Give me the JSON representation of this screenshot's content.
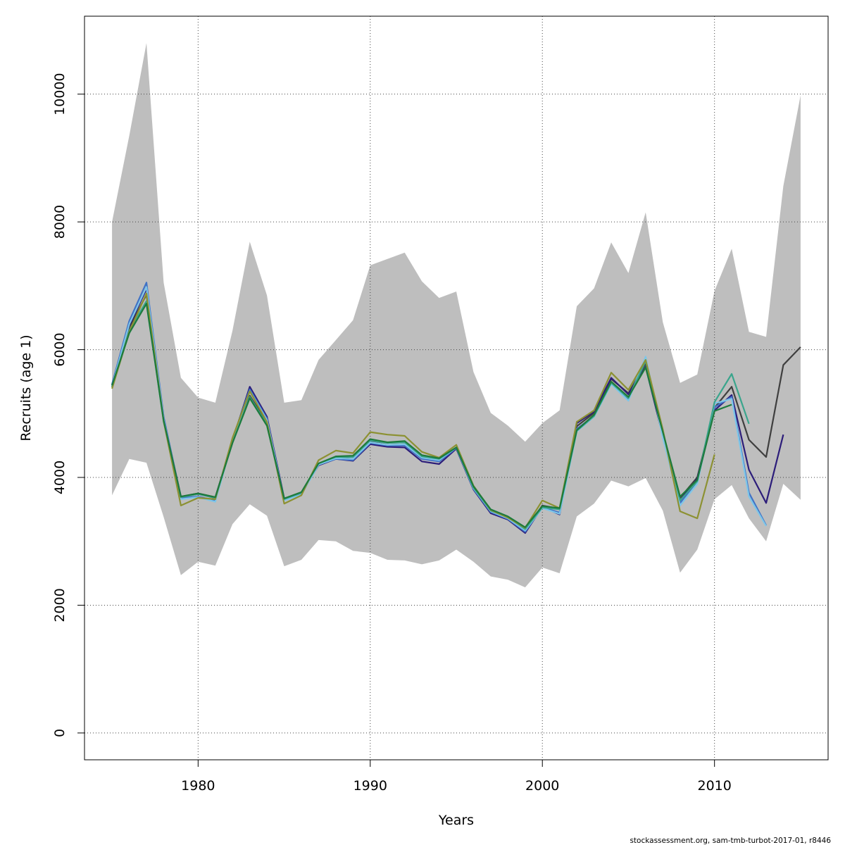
{
  "chart_data": {
    "type": "line",
    "title": "",
    "xlabel": "Years",
    "ylabel": "Recruits (age 1)",
    "xlim": [
      1973.4,
      2016.6
    ],
    "ylim": [
      -420,
      11220
    ],
    "x_ticks": [
      1980,
      1990,
      2000,
      2010
    ],
    "y_ticks": [
      0,
      2000,
      4000,
      6000,
      8000,
      10000
    ],
    "grid": true,
    "confidence_band": {
      "name": "confidence interval",
      "color": "#bebebe",
      "years": [
        1975,
        1976,
        1977,
        1978,
        1979,
        1980,
        1981,
        1982,
        1983,
        1984,
        1985,
        1986,
        1987,
        1988,
        1989,
        1990,
        1991,
        1992,
        1993,
        1994,
        1995,
        1996,
        1997,
        1998,
        1999,
        2000,
        2001,
        2002,
        2003,
        2004,
        2005,
        2006,
        2007,
        2008,
        2009,
        2010,
        2011,
        2012,
        2013,
        2014,
        2015
      ],
      "upper": [
        8000,
        9350,
        10800,
        7050,
        5560,
        5250,
        5170,
        6300,
        7690,
        6850,
        5170,
        5210,
        5840,
        6150,
        6460,
        7320,
        7420,
        7520,
        7070,
        6810,
        6910,
        5650,
        5010,
        4810,
        4560,
        4850,
        5050,
        6680,
        6960,
        7680,
        7200,
        8150,
        6430,
        5480,
        5610,
        6920,
        7580,
        6280,
        6200,
        8560,
        9980
      ],
      "lower": [
        3720,
        4290,
        4230,
        3380,
        2470,
        2680,
        2620,
        3270,
        3580,
        3400,
        2610,
        2710,
        3020,
        3000,
        2850,
        2820,
        2710,
        2700,
        2640,
        2700,
        2870,
        2680,
        2450,
        2400,
        2280,
        2590,
        2500,
        3390,
        3590,
        3950,
        3860,
        3990,
        3480,
        2510,
        2870,
        3660,
        3880,
        3360,
        3000,
        3900,
        3650
      ]
    },
    "series": [
      {
        "color": "#3f3f3f",
        "years": [
          1975,
          1976,
          1977,
          1978,
          1979,
          1980,
          1981,
          1982,
          1983,
          1984,
          1985,
          1986,
          1987,
          1988,
          1989,
          1990,
          1991,
          1992,
          1993,
          1994,
          1995,
          1996,
          1997,
          1998,
          1999,
          2000,
          2001,
          2002,
          2003,
          2004,
          2005,
          2006,
          2007,
          2008,
          2009,
          2010,
          2011,
          2012,
          2013,
          2014,
          2015
        ],
        "values": [
          5420,
          6350,
          6860,
          4900,
          3700,
          3750,
          3690,
          4560,
          5280,
          4860,
          3660,
          3760,
          4210,
          4310,
          4290,
          4560,
          4510,
          4520,
          4300,
          4260,
          4460,
          3830,
          3470,
          3370,
          3180,
          3560,
          3510,
          4800,
          5010,
          5540,
          5320,
          5780,
          4700,
          3680,
          4000,
          5090,
          5420,
          4590,
          4320,
          5760,
          6040
        ]
      },
      {
        "color": "#2c1d7a",
        "years": [
          1975,
          1976,
          1977,
          1978,
          1979,
          1980,
          1981,
          1982,
          1983,
          1984,
          1985,
          1986,
          1987,
          1988,
          1989,
          1990,
          1991,
          1992,
          1993,
          1994,
          1995,
          1996,
          1997,
          1998,
          1999,
          2000,
          2001,
          2002,
          2003,
          2004,
          2005,
          2006,
          2007,
          2008,
          2009,
          2010,
          2011,
          2012,
          2013,
          2014
        ],
        "values": [
          5450,
          6380,
          6950,
          4920,
          3700,
          3740,
          3680,
          4580,
          5420,
          4950,
          3670,
          3760,
          4190,
          4290,
          4260,
          4520,
          4480,
          4470,
          4250,
          4210,
          4450,
          3810,
          3440,
          3340,
          3130,
          3540,
          3420,
          4850,
          5030,
          5560,
          5300,
          5730,
          4650,
          3640,
          3980,
          5050,
          5290,
          4120,
          3600,
          4670
        ]
      },
      {
        "color": "#3f72c6",
        "years": [
          1975,
          1976,
          1977,
          1978,
          1979,
          1980,
          1981,
          1982,
          1983,
          1984,
          1985,
          1986,
          1987,
          1988,
          1989,
          1990,
          1991,
          1992,
          1993,
          1994,
          1995,
          1996,
          1997,
          1998,
          1999,
          2000,
          2001,
          2002,
          2003,
          2004,
          2005,
          2006,
          2007,
          2008,
          2009,
          2010,
          2011,
          2012,
          2013
        ],
        "values": [
          5460,
          6450,
          7050,
          4950,
          3680,
          3700,
          3640,
          4600,
          5380,
          4920,
          3650,
          3740,
          4200,
          4290,
          4270,
          4540,
          4500,
          4500,
          4290,
          4250,
          4460,
          3820,
          3460,
          3350,
          3150,
          3530,
          3450,
          4760,
          4960,
          5490,
          5230,
          5870,
          4640,
          3600,
          3940,
          5100,
          5260,
          3760,
          3250
        ]
      },
      {
        "color": "#7ec6e8",
        "years": [
          1975,
          1976,
          1977,
          1978,
          1979,
          1980,
          1981,
          1982,
          1983,
          1984,
          1985,
          1986,
          1987,
          1988,
          1989,
          1990,
          1991,
          1992,
          1993,
          1994,
          1995,
          1996,
          1997,
          1998,
          1999,
          2000,
          2001,
          2002,
          2003,
          2004,
          2005,
          2006,
          2007,
          2008,
          2009,
          2010,
          2011,
          2012,
          2013
        ],
        "values": [
          5430,
          6400,
          6980,
          4910,
          3660,
          3690,
          3620,
          4580,
          5350,
          4900,
          3640,
          3730,
          4200,
          4300,
          4290,
          4550,
          4510,
          4520,
          4310,
          4270,
          4470,
          3830,
          3470,
          3360,
          3170,
          3520,
          3430,
          4720,
          4950,
          5460,
          5200,
          5890,
          4620,
          3560,
          3900,
          5160,
          5230,
          3700,
          3240
        ]
      },
      {
        "color": "#3aa58c",
        "years": [
          1975,
          1976,
          1977,
          1978,
          1979,
          1980,
          1981,
          1982,
          1983,
          1984,
          1985,
          1986,
          1987,
          1988,
          1989,
          1990,
          1991,
          1992,
          1993,
          1994,
          1995,
          1996,
          1997,
          1998,
          1999,
          2000,
          2001,
          2002,
          2003,
          2004,
          2005,
          2006,
          2007,
          2008,
          2009,
          2010,
          2011,
          2012
        ],
        "values": [
          5410,
          6300,
          6760,
          4870,
          3690,
          3740,
          3680,
          4550,
          5260,
          4830,
          3660,
          3760,
          4220,
          4320,
          4320,
          4580,
          4540,
          4550,
          4330,
          4290,
          4470,
          3840,
          3480,
          3380,
          3190,
          3530,
          3500,
          4730,
          4960,
          5480,
          5240,
          5820,
          4720,
          3640,
          3940,
          5180,
          5620,
          4840
        ]
      },
      {
        "color": "#8c9132",
        "years": [
          1975,
          1976,
          1977,
          1978,
          1979,
          1980,
          1981,
          1982,
          1983,
          1984,
          1985,
          1986,
          1987,
          1988,
          1989,
          1990,
          1991,
          1992,
          1993,
          1994,
          1995,
          1996,
          1997,
          1998,
          1999,
          2000,
          2001,
          2002,
          2003,
          2004,
          2005,
          2006,
          2007,
          2008,
          2009,
          2010
        ],
        "values": [
          5390,
          6280,
          6880,
          4880,
          3560,
          3680,
          3660,
          4620,
          5350,
          4870,
          3590,
          3720,
          4270,
          4420,
          4380,
          4710,
          4670,
          4650,
          4400,
          4310,
          4510,
          3870,
          3490,
          3370,
          3210,
          3640,
          3520,
          4870,
          5050,
          5640,
          5370,
          5840,
          4750,
          3470,
          3360,
          4360
        ]
      },
      {
        "color": "#1d7a3c",
        "years": [
          1975,
          1976,
          1977,
          1978,
          1979,
          1980,
          1981,
          1982,
          1983,
          1984,
          1985,
          1986,
          1987,
          1988,
          1989,
          1990,
          1991,
          1992,
          1993,
          1994,
          1995,
          1996,
          1997,
          1998,
          1999,
          2000,
          2001,
          2002,
          2003,
          2004,
          2005,
          2006,
          2007,
          2008,
          2009,
          2010,
          2011
        ],
        "values": [
          5440,
          6260,
          6720,
          4890,
          3700,
          3750,
          3690,
          4540,
          5240,
          4810,
          3670,
          3770,
          4220,
          4330,
          4340,
          4600,
          4550,
          4570,
          4350,
          4300,
          4470,
          3860,
          3500,
          3390,
          3220,
          3550,
          3520,
          4740,
          4980,
          5500,
          5260,
          5720,
          4710,
          3700,
          3960,
          5040,
          5140
        ]
      }
    ]
  },
  "footer": {
    "credit": "stockassessment.org, sam-tmb-turbot-2017-01, r8446"
  }
}
